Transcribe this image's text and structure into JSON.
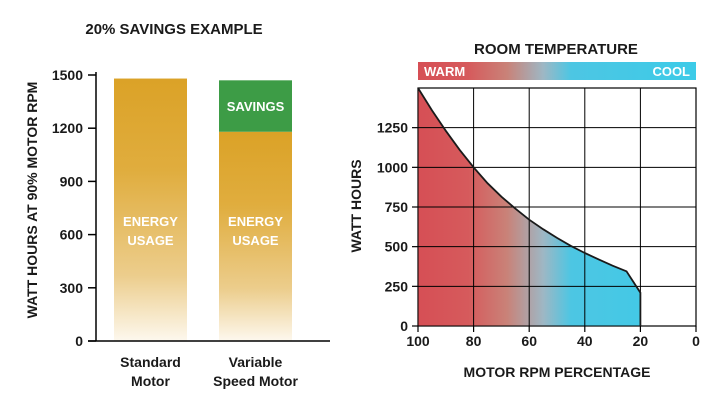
{
  "colors": {
    "gold": "#dba227",
    "savings_green": "#3d9c46",
    "warm": "#d64f55",
    "cool": "#3ccbe8",
    "text": "#1a1a1a",
    "inner_label": "#ffffff",
    "grid": "#000000"
  },
  "chart_data": [
    {
      "type": "bar",
      "title": "20% SAVINGS EXAMPLE",
      "ylabel": "WATT HOURS  AT 90% MOTOR RPM",
      "ylim": [
        0,
        1500
      ],
      "yticks": [
        0,
        300,
        600,
        900,
        1200,
        1500
      ],
      "categories": [
        {
          "line1": "Standard",
          "line2": "Motor"
        },
        {
          "line1": "Variable",
          "line2": "Speed Motor"
        }
      ],
      "series": [
        {
          "name": "ENERGY USAGE",
          "values": [
            1480,
            1180
          ]
        },
        {
          "name": "SAVINGS",
          "values": [
            0,
            290
          ]
        }
      ],
      "segment_labels": {
        "energy": {
          "line1": "ENERGY",
          "line2": "USAGE"
        },
        "savings": "SAVINGS"
      }
    },
    {
      "type": "area",
      "title": "ROOM TEMPERATURE",
      "gradient_labels": {
        "left": "WARM",
        "right": "COOL"
      },
      "xlabel": "MOTOR RPM PERCENTAGE",
      "ylabel": "WATT HOURS",
      "xlim": [
        100,
        0
      ],
      "ylim": [
        0,
        1500
      ],
      "xticks": [
        100,
        80,
        60,
        40,
        20,
        0
      ],
      "yticks": [
        0,
        250,
        500,
        750,
        1000,
        1250
      ],
      "grid": true,
      "series": [
        {
          "x": [
            100,
            95,
            90,
            85,
            80,
            75,
            70,
            65,
            60,
            55,
            50,
            45,
            40,
            35,
            30,
            25,
            20
          ],
          "y": [
            1500,
            1360,
            1230,
            1110,
            1000,
            900,
            815,
            740,
            670,
            610,
            555,
            505,
            460,
            420,
            380,
            345,
            210
          ]
        }
      ]
    }
  ]
}
